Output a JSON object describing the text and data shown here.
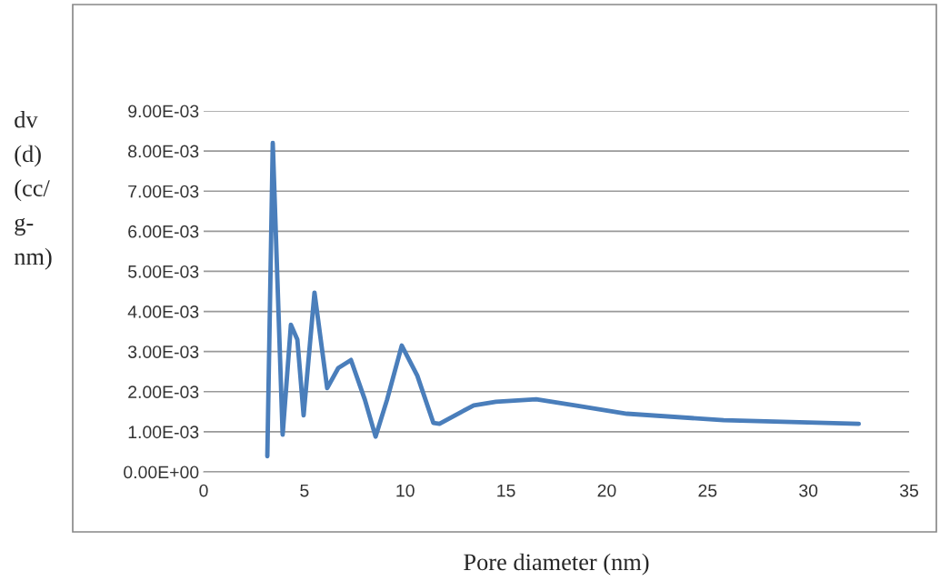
{
  "chart_data": {
    "type": "line",
    "xlabel": "Pore diameter (nm)",
    "ylabel": "dv\n(d)\n(cc/\ng-\nnm)",
    "series": [
      {
        "color": "#4a7ebb",
        "x": [
          3.16,
          3.43,
          3.92,
          4.33,
          4.65,
          4.96,
          5.5,
          6.13,
          6.68,
          7.31,
          8.0,
          8.53,
          9.1,
          9.83,
          10.6,
          11.4,
          11.7,
          13.4,
          14.5,
          16.5,
          18.5,
          21.0,
          25.8,
          32.5
        ],
        "values": [
          0.00039,
          0.0082,
          0.00093,
          0.00367,
          0.0033,
          0.00141,
          0.00447,
          0.00209,
          0.00259,
          0.00279,
          0.0018,
          0.00088,
          0.0018,
          0.00315,
          0.0024,
          0.00122,
          0.0012,
          0.00166,
          0.00175,
          0.00181,
          0.00165,
          0.00145,
          0.00129,
          0.0012
        ]
      }
    ],
    "xlim": [
      0,
      35
    ],
    "xticks": [
      0,
      5,
      10,
      15,
      20,
      25,
      30,
      35
    ],
    "ylim": [
      0,
      0.009
    ],
    "yticks": [
      {
        "value": 0,
        "label": "0.00E+00"
      },
      {
        "value": 0.001,
        "label": "1.00E-03"
      },
      {
        "value": 0.002,
        "label": "2.00E-03"
      },
      {
        "value": 0.003,
        "label": "3.00E-03"
      },
      {
        "value": 0.004,
        "label": "4.00E-03"
      },
      {
        "value": 0.005,
        "label": "5.00E-03"
      },
      {
        "value": 0.006,
        "label": "6.00E-03"
      },
      {
        "value": 0.007,
        "label": "7.00E-03"
      },
      {
        "value": 0.008,
        "label": "8.00E-03"
      },
      {
        "value": 0.009,
        "label": "9.00E-03"
      }
    ],
    "grid": "y",
    "marker": "none",
    "line_style": "solid"
  }
}
